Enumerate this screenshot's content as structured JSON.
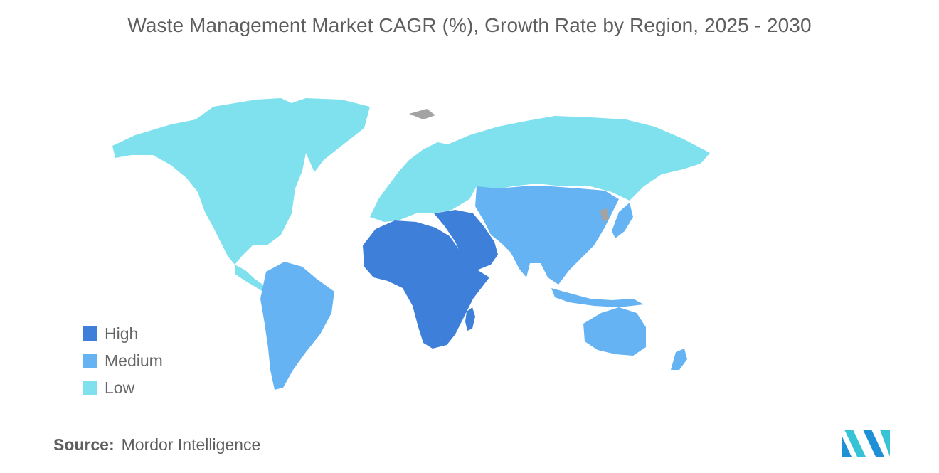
{
  "title": "Waste Management Market CAGR (%), Growth Rate by Region, 2025 - 2030",
  "legend": [
    {
      "label": "High",
      "color": "#3d7fd9"
    },
    {
      "label": "Medium",
      "color": "#66b3f4"
    },
    {
      "label": "Low",
      "color": "#7fe0ee"
    }
  ],
  "regions": {
    "north_america": "Low",
    "europe": "Low",
    "russia_north_asia": "Low",
    "south_america": "Medium",
    "asia_pacific": "Medium",
    "australia_oceania": "Medium",
    "africa": "High",
    "middle_east": "High",
    "no_data": "#a3a3a3"
  },
  "source": {
    "label": "Source:",
    "value": "Mordor Intelligence"
  }
}
